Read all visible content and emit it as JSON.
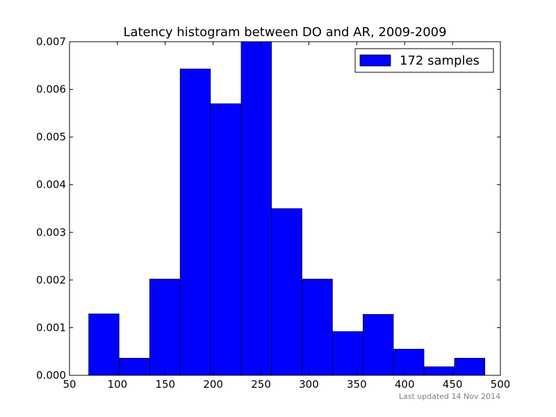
{
  "chart_data": {
    "type": "bar",
    "title": "Latency histogram between DO and AR, 2009-2009",
    "xlabel": "",
    "ylabel": "",
    "xlim": [
      50,
      500
    ],
    "ylim": [
      0,
      0.007
    ],
    "xticks": [
      50,
      100,
      150,
      200,
      250,
      300,
      350,
      400,
      450,
      500
    ],
    "yticks": [
      "0.000",
      "0.001",
      "0.002",
      "0.003",
      "0.004",
      "0.005",
      "0.006",
      "0.007"
    ],
    "bins": [
      {
        "x0": 70,
        "x1": 101.8,
        "value": 0.00129
      },
      {
        "x0": 101.8,
        "x1": 133.7,
        "value": 0.00036
      },
      {
        "x0": 133.7,
        "x1": 165.5,
        "value": 0.00202
      },
      {
        "x0": 165.5,
        "x1": 197.3,
        "value": 0.00643
      },
      {
        "x0": 197.3,
        "x1": 229.2,
        "value": 0.0057
      },
      {
        "x0": 229.2,
        "x1": 261.0,
        "value": 0.007
      },
      {
        "x0": 261.0,
        "x1": 292.8,
        "value": 0.0035
      },
      {
        "x0": 292.8,
        "x1": 324.7,
        "value": 0.00202
      },
      {
        "x0": 324.7,
        "x1": 356.5,
        "value": 0.00092
      },
      {
        "x0": 356.5,
        "x1": 388.3,
        "value": 0.00128
      },
      {
        "x0": 388.3,
        "x1": 420.2,
        "value": 0.00055
      },
      {
        "x0": 420.2,
        "x1": 452.0,
        "value": 0.00018
      },
      {
        "x0": 452.0,
        "x1": 483.8,
        "value": 0.00036
      }
    ],
    "bar_color": "#0000ff",
    "legend": {
      "label": "172 samples",
      "position": "top-right"
    },
    "grid": false
  },
  "footer": "Last updated 14 Nov 2014"
}
